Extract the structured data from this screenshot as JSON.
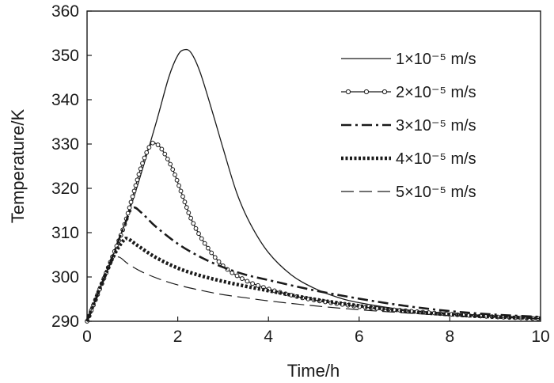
{
  "chart_data": {
    "type": "line",
    "title": "",
    "xlabel": "Time/h",
    "ylabel": "Temperature/K",
    "xlim": [
      0,
      10
    ],
    "ylim": [
      290,
      360
    ],
    "xticks": [
      0,
      2,
      4,
      6,
      8,
      10
    ],
    "yticks": [
      290,
      300,
      310,
      320,
      330,
      340,
      350,
      360
    ],
    "grid": false,
    "legend_position": "top-right",
    "series": [
      {
        "name": "1×10⁻⁵ m/s",
        "style": "solid",
        "x": [
          0,
          0.5,
          1.0,
          1.5,
          1.8,
          2.0,
          2.15,
          2.3,
          2.5,
          2.8,
          3.0,
          3.3,
          3.6,
          4.0,
          4.5,
          5.0,
          5.5,
          6.0,
          7.0,
          8.0,
          9.0,
          10.0
        ],
        "y": [
          290,
          303,
          317,
          334,
          345,
          350,
          351.3,
          350.5,
          346,
          336,
          329,
          319,
          312,
          305.5,
          300.5,
          297.5,
          295.5,
          294.2,
          292.6,
          291.8,
          291.2,
          290.8
        ]
      },
      {
        "name": "2×10⁻⁵ m/s",
        "style": "solid-circle-markers",
        "x": [
          0,
          0.5,
          0.8,
          1.0,
          1.2,
          1.4,
          1.55,
          1.7,
          1.9,
          2.1,
          2.3,
          2.6,
          3.0,
          3.5,
          4.0,
          4.5,
          5.0,
          6.0,
          7.0,
          8.0,
          9.0,
          10.0
        ],
        "y": [
          290,
          303,
          311,
          318,
          325,
          329.8,
          329.9,
          328,
          324,
          318.5,
          313,
          307.5,
          302.5,
          299.2,
          297.3,
          295.9,
          294.8,
          293.3,
          292.4,
          291.6,
          291.0,
          290.6
        ]
      },
      {
        "name": "3×10⁻⁵ m/s",
        "style": "dash-dot",
        "x": [
          0,
          0.5,
          0.8,
          1.0,
          1.2,
          1.5,
          2.0,
          2.5,
          3.0,
          3.5,
          4.0,
          5.0,
          6.0,
          7.0,
          8.0,
          9.0,
          10.0
        ],
        "y": [
          290,
          303,
          311,
          315.5,
          314.5,
          311.5,
          307.5,
          304.5,
          302.2,
          300.5,
          299.3,
          297.0,
          295.1,
          293.5,
          292.3,
          291.5,
          291.0
        ]
      },
      {
        "name": "4×10⁻⁵ m/s",
        "style": "dotted-thick",
        "x": [
          0,
          0.3,
          0.6,
          0.8,
          0.9,
          1.1,
          1.5,
          2.0,
          2.5,
          3.0,
          3.5,
          4.0,
          5.0,
          6.0,
          7.0,
          8.0,
          9.0,
          10.0
        ],
        "y": [
          290,
          298,
          305,
          308.2,
          308.6,
          307.2,
          304.5,
          302.0,
          300.3,
          299.0,
          297.9,
          296.9,
          295.0,
          293.5,
          292.3,
          291.5,
          291.0,
          290.7
        ]
      },
      {
        "name": "5×10⁻⁵ m/s",
        "style": "long-dash",
        "x": [
          0,
          0.3,
          0.55,
          0.7,
          0.9,
          1.2,
          1.6,
          2.0,
          2.5,
          3.0,
          3.5,
          4.0,
          5.0,
          6.0,
          7.0,
          8.0,
          9.0,
          10.0
        ],
        "y": [
          290,
          298,
          303.5,
          304.5,
          303.0,
          301.2,
          299.5,
          298.2,
          297.0,
          296.0,
          295.3,
          294.6,
          293.5,
          292.6,
          291.9,
          291.3,
          290.9,
          290.6
        ]
      }
    ]
  }
}
